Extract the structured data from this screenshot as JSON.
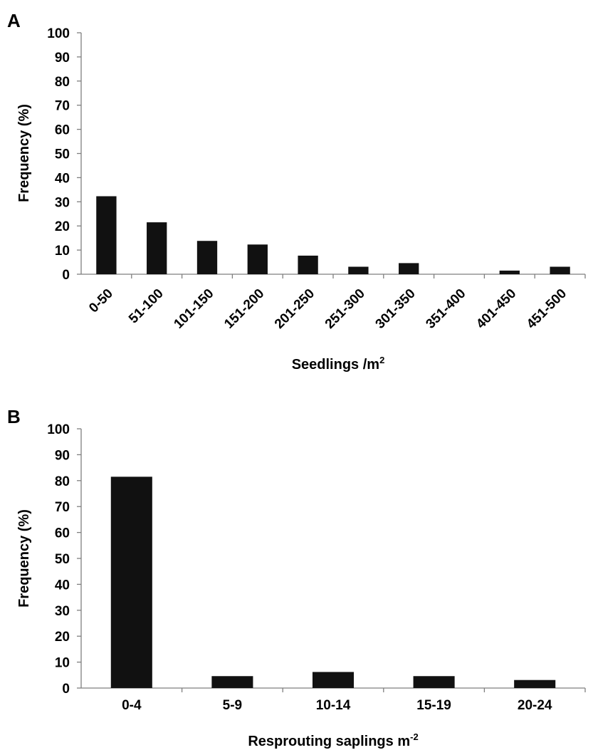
{
  "chart_data": [
    {
      "panel_label": "A",
      "type": "bar",
      "categories": [
        "0-50",
        "51-100",
        "101-150",
        "151-200",
        "201-250",
        "251-300",
        "301-350",
        "351-400",
        "401-450",
        "451-500"
      ],
      "values": [
        32.3,
        21.5,
        13.8,
        12.3,
        7.7,
        3.1,
        4.6,
        0,
        1.5,
        3.1
      ],
      "ylabel": "Frequency (%)",
      "xlabel_text": "Seedlings /m",
      "xlabel_sup": "2",
      "ylim": [
        0,
        100
      ],
      "yticks": [
        0,
        10,
        20,
        30,
        40,
        50,
        60,
        70,
        80,
        90,
        100
      ],
      "grid": false,
      "bar_color": "#111111"
    },
    {
      "panel_label": "B",
      "type": "bar",
      "categories": [
        "0-4",
        "5-9",
        "10-14",
        "15-19",
        "20-24"
      ],
      "values": [
        81.5,
        4.6,
        6.2,
        4.6,
        3.1
      ],
      "ylabel": "Frequency (%)",
      "xlabel_text": "Resprouting saplings m",
      "xlabel_sup": "-2",
      "ylim": [
        0,
        100
      ],
      "yticks": [
        0,
        10,
        20,
        30,
        40,
        50,
        60,
        70,
        80,
        90,
        100
      ],
      "grid": false,
      "bar_color": "#111111"
    }
  ]
}
